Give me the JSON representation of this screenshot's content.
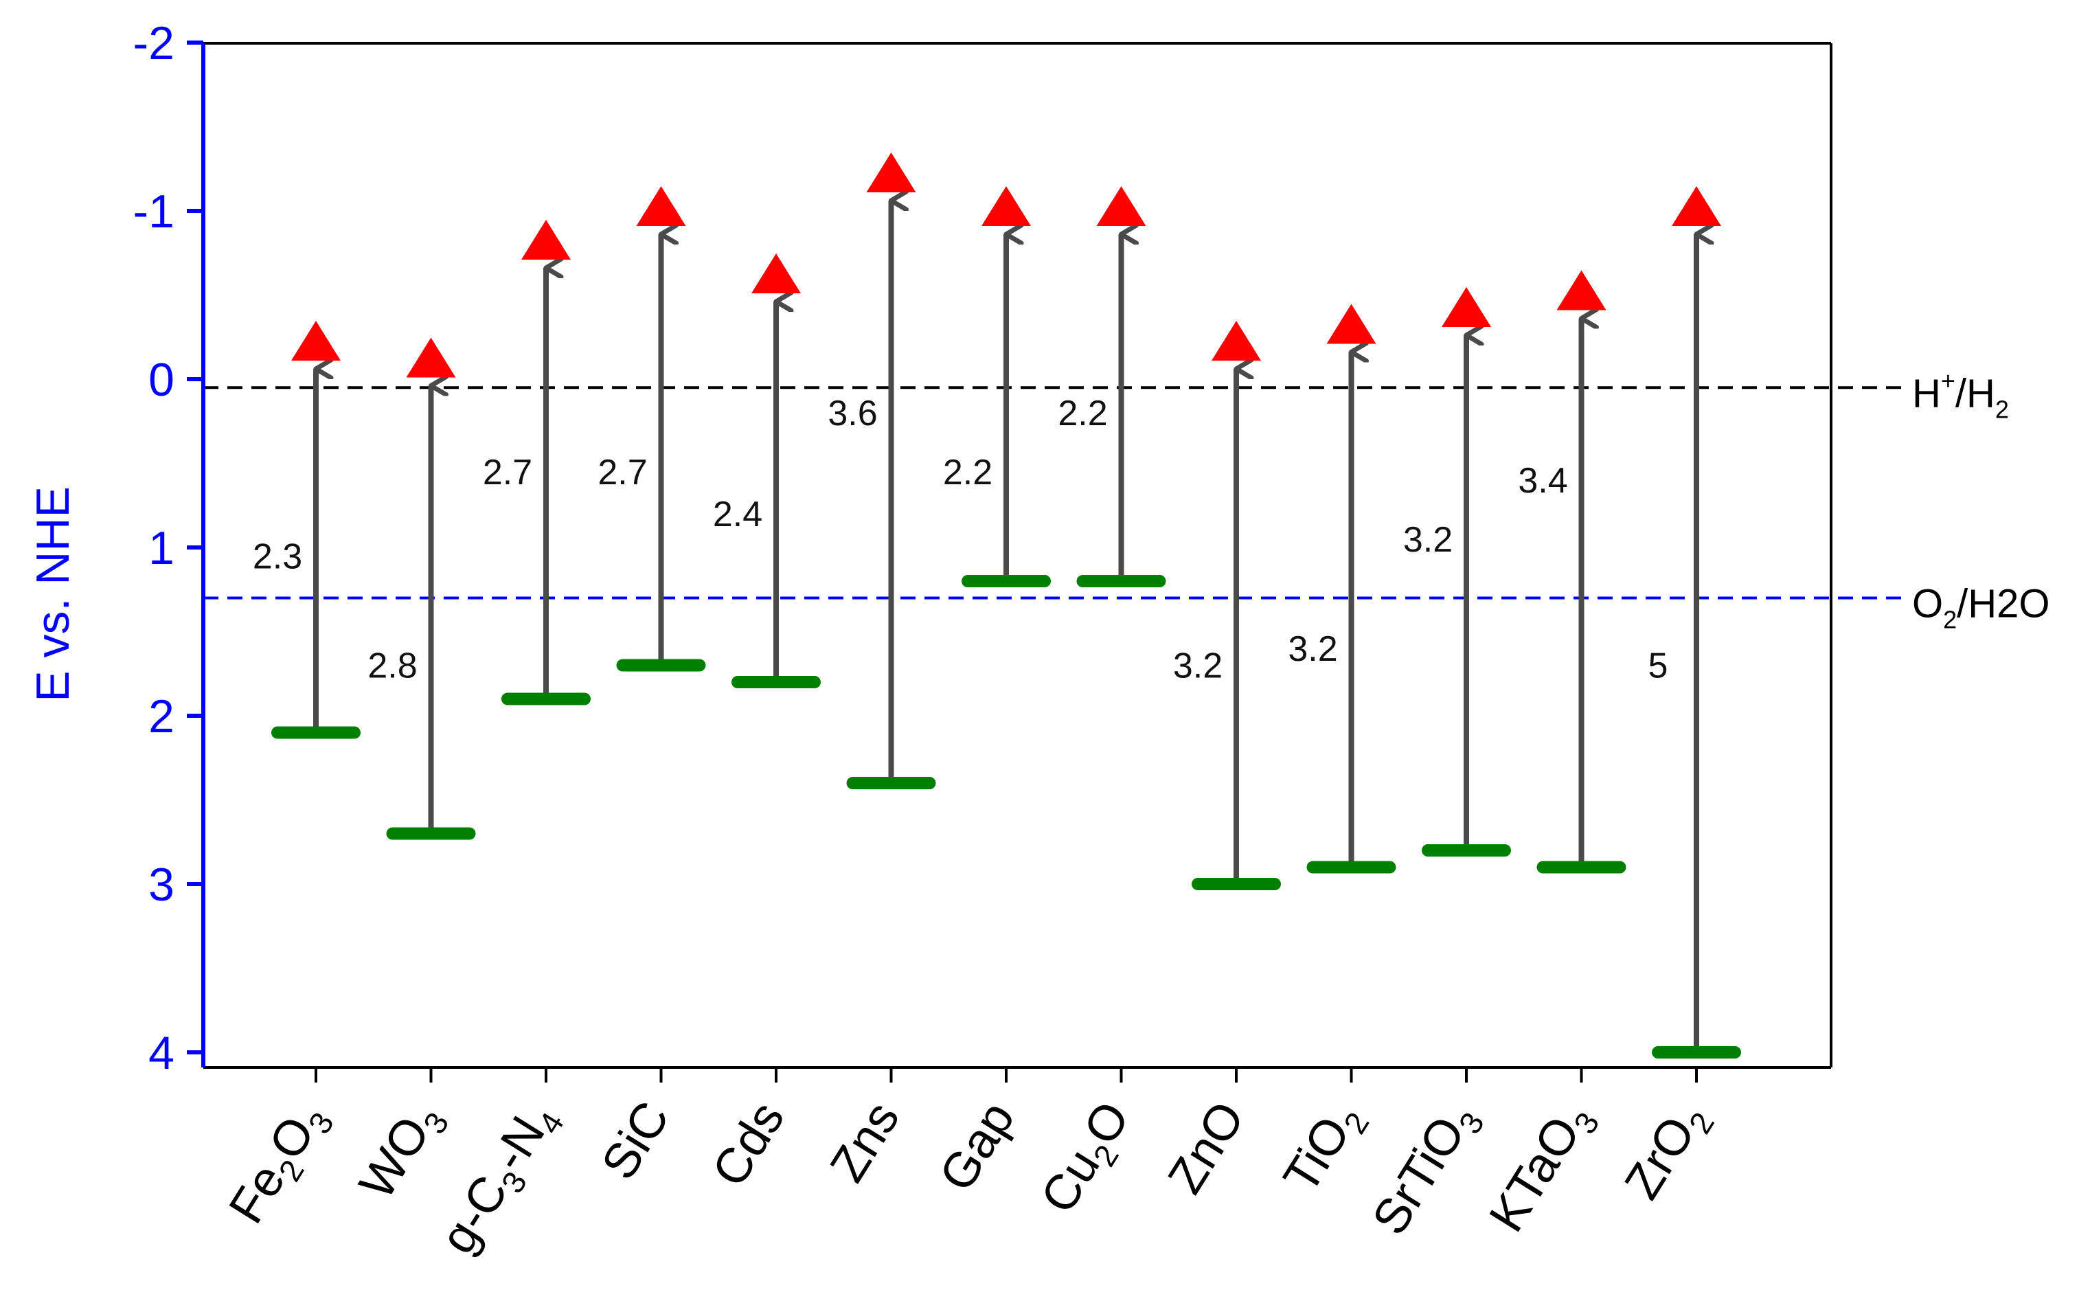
{
  "chart_data": {
    "type": "band-diagram",
    "title": "",
    "ylabel": "E vs. NHE",
    "xlabel": "",
    "ylim": [
      4.1,
      -2
    ],
    "yticks": [
      {
        "value": -2,
        "label": "-2"
      },
      {
        "value": -1,
        "label": "-1"
      },
      {
        "value": 0,
        "label": "0"
      },
      {
        "value": 1,
        "label": "1"
      },
      {
        "value": 2,
        "label": "2"
      },
      {
        "value": 3,
        "label": "3"
      },
      {
        "value": 4,
        "label": "4"
      }
    ],
    "axis_color": "#0000ff",
    "reference_lines": [
      {
        "name": "H+/H2",
        "value": 0.05,
        "color": "#000000",
        "label_base": "H",
        "label_sup": "+",
        "label_mid": "/H",
        "label_sub": "2",
        "label_end": ""
      },
      {
        "name": "O2/H2O",
        "value": 1.3,
        "color": "#0000ff",
        "label_base": "O",
        "label_sup": "",
        "label_mid": "",
        "label_sub": "2",
        "label_end": "/H2O"
      }
    ],
    "colors": {
      "conduction_band": "#ff0000",
      "valence_band": "#008000",
      "arrow": "#4a4a4a",
      "hh_line": "#000000",
      "oh_line": "#0000ff"
    },
    "materials": [
      {
        "name": "Fe2O3",
        "label_parts": [
          [
            "Fe",
            ""
          ],
          [
            "2",
            "sub"
          ],
          [
            "O",
            ""
          ],
          [
            "3",
            "sub"
          ]
        ],
        "cb": -0.2,
        "vb": 2.1,
        "gap": "2.3",
        "gap_at": 1.05
      },
      {
        "name": "WO3",
        "label_parts": [
          [
            "WO",
            ""
          ],
          [
            "3",
            "sub"
          ]
        ],
        "cb": -0.1,
        "vb": 2.7,
        "gap": "2.8",
        "gap_at": 1.7
      },
      {
        "name": "g-C3-N4",
        "label_parts": [
          [
            "g-C",
            ""
          ],
          [
            "3",
            "sub"
          ],
          [
            "-N",
            ""
          ],
          [
            "4",
            "sub"
          ]
        ],
        "cb": -0.8,
        "vb": 1.9,
        "gap": "2.7",
        "gap_at": 0.55
      },
      {
        "name": "SiC",
        "label_parts": [
          [
            "SiC",
            ""
          ]
        ],
        "cb": -1.0,
        "vb": 1.7,
        "gap": "2.7",
        "gap_at": 0.55
      },
      {
        "name": "Cds",
        "label_parts": [
          [
            "Cds",
            ""
          ]
        ],
        "cb": -0.6,
        "vb": 1.8,
        "gap": "2.4",
        "gap_at": 0.8
      },
      {
        "name": "Zns",
        "label_parts": [
          [
            "Zns",
            ""
          ]
        ],
        "cb": -1.2,
        "vb": 2.4,
        "gap": "3.6",
        "gap_at": 0.2
      },
      {
        "name": "Gap",
        "label_parts": [
          [
            "Gap",
            ""
          ]
        ],
        "cb": -1.0,
        "vb": 1.2,
        "gap": "2.2",
        "gap_at": 0.55
      },
      {
        "name": "Cu2O",
        "label_parts": [
          [
            "Cu",
            ""
          ],
          [
            "2",
            "sub"
          ],
          [
            "O",
            ""
          ]
        ],
        "cb": -1.0,
        "vb": 1.2,
        "gap": "2.2",
        "gap_at": 0.2
      },
      {
        "name": "ZnO",
        "label_parts": [
          [
            "ZnO",
            ""
          ]
        ],
        "cb": -0.2,
        "vb": 3.0,
        "gap": "3.2",
        "gap_at": 1.7
      },
      {
        "name": "TiO2",
        "label_parts": [
          [
            "TiO",
            ""
          ],
          [
            "2",
            "sub"
          ]
        ],
        "cb": -0.3,
        "vb": 2.9,
        "gap": "3.2",
        "gap_at": 1.6
      },
      {
        "name": "SrTiO3",
        "label_parts": [
          [
            "SrTiO",
            ""
          ],
          [
            "3",
            "sub"
          ]
        ],
        "cb": -0.4,
        "vb": 2.8,
        "gap": "3.2",
        "gap_at": 0.95
      },
      {
        "name": "KTaO3",
        "label_parts": [
          [
            "KTaO",
            ""
          ],
          [
            "3",
            "sub"
          ]
        ],
        "cb": -0.5,
        "vb": 2.9,
        "gap": "3.4",
        "gap_at": 0.6
      },
      {
        "name": "ZrO2",
        "label_parts": [
          [
            "ZrO",
            ""
          ],
          [
            "2",
            "sub"
          ]
        ],
        "cb": -1.0,
        "vb": 4.0,
        "gap": "5",
        "gap_at": 1.7
      }
    ]
  }
}
